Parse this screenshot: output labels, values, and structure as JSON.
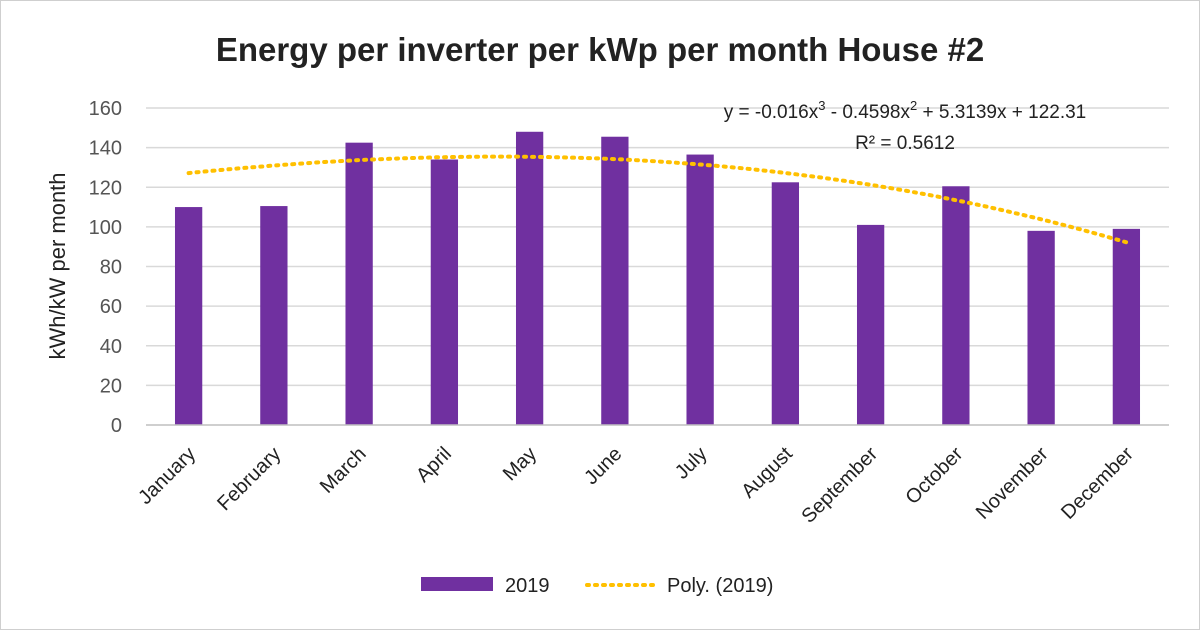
{
  "chart_data": {
    "type": "bar",
    "title": "Energy per inverter per kWp per month  House #2",
    "ylabel": "kWh/kW per month",
    "xlabel": "",
    "ylim": [
      0,
      160
    ],
    "yticks": [
      0,
      20,
      40,
      60,
      80,
      100,
      120,
      140,
      160
    ],
    "grid": true,
    "categories": [
      "January",
      "February",
      "March",
      "April",
      "May",
      "June",
      "July",
      "August",
      "September",
      "October",
      "November",
      "December"
    ],
    "series": [
      {
        "name": "2019",
        "color": "#7030a0",
        "values": [
          110,
          110.5,
          142.5,
          134,
          148,
          145.5,
          136.5,
          122.5,
          101,
          120.5,
          98,
          99
        ]
      }
    ],
    "trendline": {
      "name": "Poly. (2019)",
      "type": "polynomial",
      "order": 3,
      "color": "#ffc000",
      "coefficients": [
        -0.016,
        -0.4598,
        5.3139,
        122.31
      ],
      "equation_prefix": "y = -0.016x",
      "equation_sup1": "3",
      "equation_mid": " - 0.4598x",
      "equation_sup2": "2",
      "equation_suffix": " + 5.3139x + 122.31",
      "r_squared_label": "R² = 0.5612"
    },
    "legend_position": "bottom"
  }
}
